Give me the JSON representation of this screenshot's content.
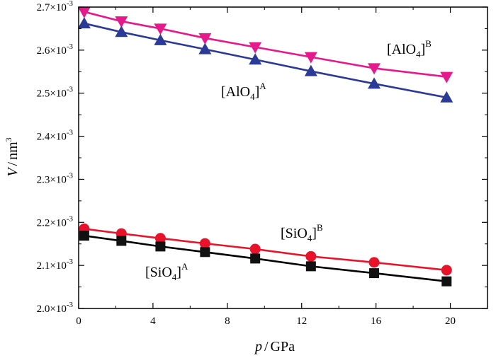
{
  "chart_data": {
    "type": "line",
    "title": "",
    "xlabel": {
      "var": "p",
      "unit": "GPa"
    },
    "ylabel": {
      "var": "V",
      "unit": "nm",
      "unit_sup": "3"
    },
    "xlim": [
      0,
      22
    ],
    "ylim": [
      2.0,
      2.7
    ],
    "x_ticks": [
      0,
      4,
      8,
      12,
      16,
      20
    ],
    "y_ticks": [
      {
        "value": 2.0,
        "mant": "2.0×10",
        "exp": "-3"
      },
      {
        "value": 2.1,
        "mant": "2.1×10",
        "exp": "-3"
      },
      {
        "value": 2.2,
        "mant": "2.2×10",
        "exp": "-3"
      },
      {
        "value": 2.3,
        "mant": "2.3×10",
        "exp": "-3"
      },
      {
        "value": 2.4,
        "mant": "2.4×10",
        "exp": "-3"
      },
      {
        "value": 2.5,
        "mant": "2.5×10",
        "exp": "-3"
      },
      {
        "value": 2.6,
        "mant": "2.6×10",
        "exp": "-3"
      },
      {
        "value": 2.7,
        "mant": "2.7×10",
        "exp": "-3"
      }
    ],
    "grid": false,
    "series": [
      {
        "name": "[AlO4]B",
        "label_base": "[AlO",
        "label_sub": "4",
        "label_close": "]",
        "label_sup": "B",
        "color": "#e6198c",
        "line_color": "#e6198c",
        "marker": "triangle-down",
        "x": [
          0.3,
          2.3,
          4.4,
          6.8,
          9.5,
          12.5,
          15.9,
          19.8
        ],
        "y": [
          2.689,
          2.667,
          2.65,
          2.628,
          2.607,
          2.584,
          2.558,
          2.538
        ]
      },
      {
        "name": "[AlO4]A",
        "label_base": "[AlO",
        "label_sub": "4",
        "label_close": "]",
        "label_sup": "A",
        "color": "#2a3a96",
        "line_color": "#2a3a96",
        "marker": "triangle-up",
        "x": [
          0.3,
          2.3,
          4.4,
          6.8,
          9.5,
          12.5,
          15.9,
          19.8
        ],
        "y": [
          2.662,
          2.642,
          2.623,
          2.602,
          2.578,
          2.551,
          2.522,
          2.49
        ]
      },
      {
        "name": "[SiO4]B",
        "label_base": "[SiO",
        "label_sub": "4",
        "label_close": "]",
        "label_sup": "B",
        "color": "#e8132a",
        "line_color": "#e8132a",
        "marker": "circle",
        "x": [
          0.3,
          2.3,
          4.4,
          6.8,
          9.5,
          12.5,
          15.9,
          19.8
        ],
        "y": [
          2.185,
          2.174,
          2.163,
          2.151,
          2.138,
          2.121,
          2.107,
          2.089
        ]
      },
      {
        "name": "[SiO4]A",
        "label_base": "[SiO",
        "label_sub": "4",
        "label_close": "]",
        "label_sup": "A",
        "color": "#111111",
        "line_color": "#000000",
        "marker": "square",
        "x": [
          0.3,
          2.3,
          4.4,
          6.8,
          9.5,
          12.5,
          15.9,
          19.8
        ],
        "y": [
          2.169,
          2.157,
          2.144,
          2.131,
          2.116,
          2.098,
          2.082,
          2.063
        ]
      }
    ]
  }
}
